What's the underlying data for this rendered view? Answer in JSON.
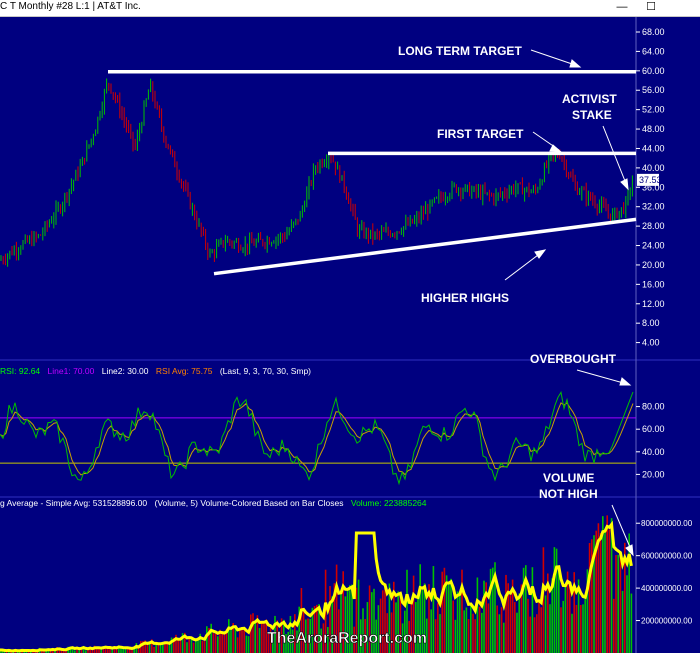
{
  "window": {
    "title": "C T  Monthly  #28  L:1 | AT&T Inc.",
    "minimize_glyph": "—",
    "maximize_glyph": "☐"
  },
  "colors": {
    "background": "#000080",
    "annotation": "#ffffff",
    "bull": "#00c000",
    "bear": "#d00000",
    "rsi_line": "#ff3030",
    "rsi_avg": "#c8a000",
    "line1": "#a000ff",
    "line2": "#c8c800",
    "volume_avg": "#ffff00"
  },
  "chart_data": [
    {
      "type": "candlestick",
      "title": "AT&T Inc.",
      "ylim": [
        0,
        68
      ],
      "y_ticks": [
        "68.00",
        "64.00",
        "60.00",
        "56.00",
        "52.00",
        "48.00",
        "44.00",
        "40.00",
        "36.00",
        "32.00",
        "28.00",
        "24.00",
        "20.00",
        "16.00",
        "12.00",
        "8.00",
        "4.00"
      ],
      "last_price": "37.53",
      "grid": false,
      "annotations": [
        {
          "text": "LONG TERM TARGET"
        },
        {
          "text": "FIRST TARGET"
        },
        {
          "text": "ACTIVIST"
        },
        {
          "text": "STAKE"
        },
        {
          "text": "HIGHER HIGHS"
        }
      ],
      "levels": {
        "long_term_target": 59.8,
        "first_target": 43.0
      }
    },
    {
      "type": "line",
      "title": "RSI",
      "header": {
        "rsi": "RSI: 92.64",
        "line1": "Line1: 70.00",
        "line2": "Line2: 30.00",
        "rsi_avg": "RSI Avg: 75.75",
        "params": "(Last, 9, 3, 70, 30, Smp)"
      },
      "ylim": [
        0,
        100
      ],
      "y_ticks": [
        "80.00",
        "60.00",
        "40.00",
        "20.00"
      ],
      "reference_lines": [
        70,
        30
      ],
      "annotations": [
        {
          "text": "OVERBOUGHT"
        }
      ]
    },
    {
      "type": "bar",
      "title": "Volume",
      "header": {
        "ma": "g Average - Simple  Avg: 531528896.00",
        "params": "(Volume, 5)  Volume-Colored Based on Bar Closes",
        "volume": "Volume: 223885264"
      },
      "ylim": [
        0,
        900000000
      ],
      "y_ticks": [
        "800000000.00",
        "600000000.00",
        "400000000.00",
        "200000000.00"
      ],
      "annotations": [
        {
          "text": "VOLUME"
        },
        {
          "text": "NOT HIGH"
        }
      ]
    }
  ],
  "watermark": "TheAroraReport.com"
}
